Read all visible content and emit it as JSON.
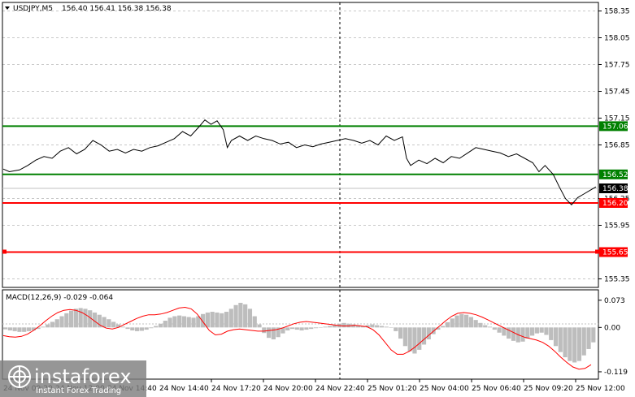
{
  "header": {
    "symbol": "USDJPY,M5",
    "ohlc": "156.40 156.41 156.38 156.38"
  },
  "price_axis": {
    "ticks": [
      "158.35",
      "158.05",
      "157.75",
      "157.45",
      "157.15",
      "156.85",
      "156.25",
      "155.95",
      "155.35"
    ]
  },
  "levels": [
    {
      "label": "157.06",
      "value": 157.06,
      "color": "#008000"
    },
    {
      "label": "156.52",
      "value": 156.52,
      "color": "#008000"
    },
    {
      "label": "156.20",
      "value": 156.2,
      "color": "#ff0000"
    },
    {
      "label": "155.65",
      "value": 155.65,
      "color": "#ff0000"
    }
  ],
  "current_price": {
    "label": "156.38",
    "value": 156.38
  },
  "time_axis": {
    "ticks": [
      "24 Nov 17:20",
      "24 Nov 20:00",
      "24 Nov 22:40",
      "25 Nov 01:20",
      "25 Nov 04:00",
      "25 Nov 06:40",
      "25 Nov 09:20",
      "25 Nov 12:00"
    ],
    "partial": [
      "24 Nov 09:20",
      "24 Nov 12:00",
      "24 Nov 14:40"
    ]
  },
  "macd": {
    "label": "MACD(12,26,9) -0.029 -0.064",
    "ticks": [
      "0.073",
      "0.00",
      "-0.119"
    ]
  },
  "watermark": {
    "brand": "instaforex",
    "tagline": "Instant Forex Trading"
  },
  "chart_data": {
    "type": "line",
    "y_range": [
      155.3,
      158.4
    ],
    "price_series": [
      {
        "i": 0,
        "p": 156.58
      },
      {
        "i": 3,
        "p": 156.55
      },
      {
        "i": 8,
        "p": 156.57
      },
      {
        "i": 12,
        "p": 156.62
      },
      {
        "i": 16,
        "p": 156.68
      },
      {
        "i": 20,
        "p": 156.72
      },
      {
        "i": 24,
        "p": 156.7
      },
      {
        "i": 28,
        "p": 156.78
      },
      {
        "i": 32,
        "p": 156.82
      },
      {
        "i": 36,
        "p": 156.75
      },
      {
        "i": 40,
        "p": 156.8
      },
      {
        "i": 44,
        "p": 156.9
      },
      {
        "i": 48,
        "p": 156.85
      },
      {
        "i": 52,
        "p": 156.78
      },
      {
        "i": 56,
        "p": 156.8
      },
      {
        "i": 60,
        "p": 156.76
      },
      {
        "i": 64,
        "p": 156.8
      },
      {
        "i": 68,
        "p": 156.78
      },
      {
        "i": 72,
        "p": 156.82
      },
      {
        "i": 76,
        "p": 156.84
      },
      {
        "i": 80,
        "p": 156.88
      },
      {
        "i": 84,
        "p": 156.92
      },
      {
        "i": 88,
        "p": 157.0
      },
      {
        "i": 92,
        "p": 156.95
      },
      {
        "i": 96,
        "p": 157.05
      },
      {
        "i": 99,
        "p": 157.13
      },
      {
        "i": 102,
        "p": 157.08
      },
      {
        "i": 105,
        "p": 157.12
      },
      {
        "i": 108,
        "p": 157.02
      },
      {
        "i": 110,
        "p": 156.82
      },
      {
        "i": 112,
        "p": 156.9
      },
      {
        "i": 116,
        "p": 156.95
      },
      {
        "i": 120,
        "p": 156.9
      },
      {
        "i": 124,
        "p": 156.95
      },
      {
        "i": 128,
        "p": 156.92
      },
      {
        "i": 132,
        "p": 156.9
      },
      {
        "i": 136,
        "p": 156.86
      },
      {
        "i": 140,
        "p": 156.88
      },
      {
        "i": 144,
        "p": 156.82
      },
      {
        "i": 148,
        "p": 156.85
      },
      {
        "i": 152,
        "p": 156.83
      },
      {
        "i": 156,
        "p": 156.86
      },
      {
        "i": 160,
        "p": 156.88
      },
      {
        "i": 164,
        "p": 156.9
      },
      {
        "i": 168,
        "p": 156.92
      },
      {
        "i": 172,
        "p": 156.9
      },
      {
        "i": 176,
        "p": 156.87
      },
      {
        "i": 180,
        "p": 156.9
      },
      {
        "i": 184,
        "p": 156.85
      },
      {
        "i": 188,
        "p": 156.95
      },
      {
        "i": 192,
        "p": 156.9
      },
      {
        "i": 196,
        "p": 156.94
      },
      {
        "i": 198,
        "p": 156.7
      },
      {
        "i": 200,
        "p": 156.62
      },
      {
        "i": 204,
        "p": 156.68
      },
      {
        "i": 208,
        "p": 156.64
      },
      {
        "i": 212,
        "p": 156.7
      },
      {
        "i": 216,
        "p": 156.65
      },
      {
        "i": 220,
        "p": 156.72
      },
      {
        "i": 224,
        "p": 156.7
      },
      {
        "i": 228,
        "p": 156.76
      },
      {
        "i": 232,
        "p": 156.82
      },
      {
        "i": 236,
        "p": 156.8
      },
      {
        "i": 240,
        "p": 156.78
      },
      {
        "i": 244,
        "p": 156.76
      },
      {
        "i": 248,
        "p": 156.72
      },
      {
        "i": 252,
        "p": 156.75
      },
      {
        "i": 256,
        "p": 156.7
      },
      {
        "i": 260,
        "p": 156.65
      },
      {
        "i": 263,
        "p": 156.55
      },
      {
        "i": 266,
        "p": 156.62
      },
      {
        "i": 270,
        "p": 156.52
      },
      {
        "i": 273,
        "p": 156.38
      },
      {
        "i": 276,
        "p": 156.25
      },
      {
        "i": 279,
        "p": 156.18
      },
      {
        "i": 282,
        "p": 156.26
      },
      {
        "i": 285,
        "p": 156.3
      },
      {
        "i": 288,
        "p": 156.34
      },
      {
        "i": 291,
        "p": 156.38
      }
    ],
    "macd_range": [
      -0.13,
      0.09
    ],
    "macd_hist": [
      -0.005,
      -0.008,
      -0.01,
      -0.012,
      -0.012,
      -0.01,
      -0.008,
      -0.004,
      0.002,
      0.008,
      0.015,
      0.022,
      0.03,
      0.038,
      0.045,
      0.05,
      0.052,
      0.05,
      0.046,
      0.04,
      0.034,
      0.028,
      0.022,
      0.015,
      0.008,
      0.002,
      -0.004,
      -0.008,
      -0.01,
      -0.009,
      -0.006,
      -0.002,
      0.004,
      0.01,
      0.018,
      0.026,
      0.03,
      0.032,
      0.03,
      0.028,
      0.026,
      0.03,
      0.036,
      0.04,
      0.042,
      0.04,
      0.038,
      0.042,
      0.05,
      0.06,
      0.066,
      0.062,
      0.05,
      0.03,
      0.008,
      -0.015,
      -0.028,
      -0.032,
      -0.026,
      -0.016,
      -0.008,
      -0.004,
      -0.006,
      -0.008,
      -0.006,
      -0.004,
      -0.002,
      0.0,
      0.002,
      0.004,
      0.006,
      0.01,
      0.012,
      0.01,
      0.008,
      0.006,
      0.004,
      0.006,
      0.008,
      0.006,
      0.004,
      0.002,
      0.0,
      -0.01,
      -0.03,
      -0.05,
      -0.064,
      -0.07,
      -0.06,
      -0.046,
      -0.032,
      -0.018,
      -0.006,
      0.004,
      0.014,
      0.024,
      0.032,
      0.036,
      0.034,
      0.028,
      0.02,
      0.012,
      0.006,
      0.002,
      -0.006,
      -0.014,
      -0.022,
      -0.03,
      -0.036,
      -0.04,
      -0.038,
      -0.03,
      -0.022,
      -0.016,
      -0.014,
      -0.02,
      -0.034,
      -0.05,
      -0.066,
      -0.08,
      -0.09,
      -0.094,
      -0.09,
      -0.075,
      -0.058,
      -0.04
    ],
    "macd_signal": [
      -0.022,
      -0.025,
      -0.026,
      -0.024,
      -0.018,
      -0.008,
      0.004,
      0.018,
      0.03,
      0.04,
      0.046,
      0.048,
      0.046,
      0.04,
      0.03,
      0.018,
      0.006,
      -0.002,
      -0.004,
      0.0,
      0.008,
      0.016,
      0.024,
      0.03,
      0.034,
      0.034,
      0.036,
      0.04,
      0.046,
      0.052,
      0.054,
      0.05,
      0.036,
      0.014,
      -0.008,
      -0.02,
      -0.018,
      -0.01,
      -0.006,
      -0.004,
      -0.006,
      -0.008,
      -0.01,
      -0.01,
      -0.008,
      -0.006,
      -0.002,
      0.004,
      0.01,
      0.014,
      0.016,
      0.014,
      0.012,
      0.01,
      0.008,
      0.006,
      0.004,
      0.004,
      0.006,
      0.004,
      0.002,
      -0.006,
      -0.02,
      -0.04,
      -0.06,
      -0.072,
      -0.072,
      -0.064,
      -0.052,
      -0.038,
      -0.024,
      -0.01,
      0.004,
      0.018,
      0.03,
      0.038,
      0.04,
      0.038,
      0.034,
      0.028,
      0.02,
      0.012,
      0.004,
      -0.004,
      -0.012,
      -0.02,
      -0.026,
      -0.03,
      -0.034,
      -0.04,
      -0.05,
      -0.064,
      -0.08,
      -0.094,
      -0.106,
      -0.112,
      -0.11,
      -0.1
    ]
  }
}
